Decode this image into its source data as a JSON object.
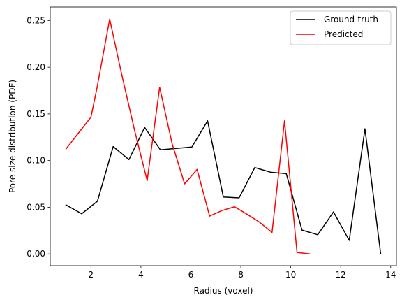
{
  "chart_data": {
    "type": "line",
    "title": "",
    "xlabel": "Radius (voxel)",
    "ylabel": "Pore size distribution (PDF)",
    "xlim": [
      0.37,
      14.23
    ],
    "ylim": [
      -0.0126,
      0.2645
    ],
    "xticks": [
      2,
      4,
      6,
      8,
      10,
      12,
      14
    ],
    "yticks": [
      0.0,
      0.05,
      0.1,
      0.15,
      0.2,
      0.25
    ],
    "grid": false,
    "legend_position": "top-right",
    "series": [
      {
        "name": "Ground-truth",
        "color": "#000000",
        "points": [
          [
            1.0,
            0.0525
          ],
          [
            1.63,
            0.043
          ],
          [
            2.26,
            0.0565
          ],
          [
            2.89,
            0.115
          ],
          [
            3.52,
            0.101
          ],
          [
            4.15,
            0.1355
          ],
          [
            4.78,
            0.1115
          ],
          [
            5.41,
            0.113
          ],
          [
            6.04,
            0.1145
          ],
          [
            6.67,
            0.1425
          ],
          [
            7.3,
            0.061
          ],
          [
            7.93,
            0.06
          ],
          [
            8.56,
            0.0925
          ],
          [
            9.19,
            0.0875
          ],
          [
            9.82,
            0.086
          ],
          [
            10.45,
            0.0255
          ],
          [
            11.08,
            0.0205
          ],
          [
            11.71,
            0.045
          ],
          [
            12.34,
            0.0145
          ],
          [
            12.97,
            0.134
          ],
          [
            13.6,
            0.0
          ]
        ]
      },
      {
        "name": "Predicted",
        "color": "#ff0000",
        "points": [
          [
            1.0,
            0.1125
          ],
          [
            1.5,
            0.1295
          ],
          [
            2.0,
            0.1465
          ],
          [
            2.25,
            0.179
          ],
          [
            2.75,
            0.2515
          ],
          [
            3.25,
            0.19
          ],
          [
            3.75,
            0.132
          ],
          [
            4.25,
            0.0785
          ],
          [
            4.75,
            0.1785
          ],
          [
            5.25,
            0.118
          ],
          [
            5.75,
            0.075
          ],
          [
            6.25,
            0.0905
          ],
          [
            6.75,
            0.0405
          ],
          [
            7.25,
            0.0465
          ],
          [
            7.75,
            0.0505
          ],
          [
            8.25,
            0.0425
          ],
          [
            8.75,
            0.034
          ],
          [
            9.25,
            0.023
          ],
          [
            9.75,
            0.1425
          ],
          [
            10.25,
            0.0015
          ],
          [
            10.75,
            0.0
          ]
        ]
      }
    ]
  }
}
